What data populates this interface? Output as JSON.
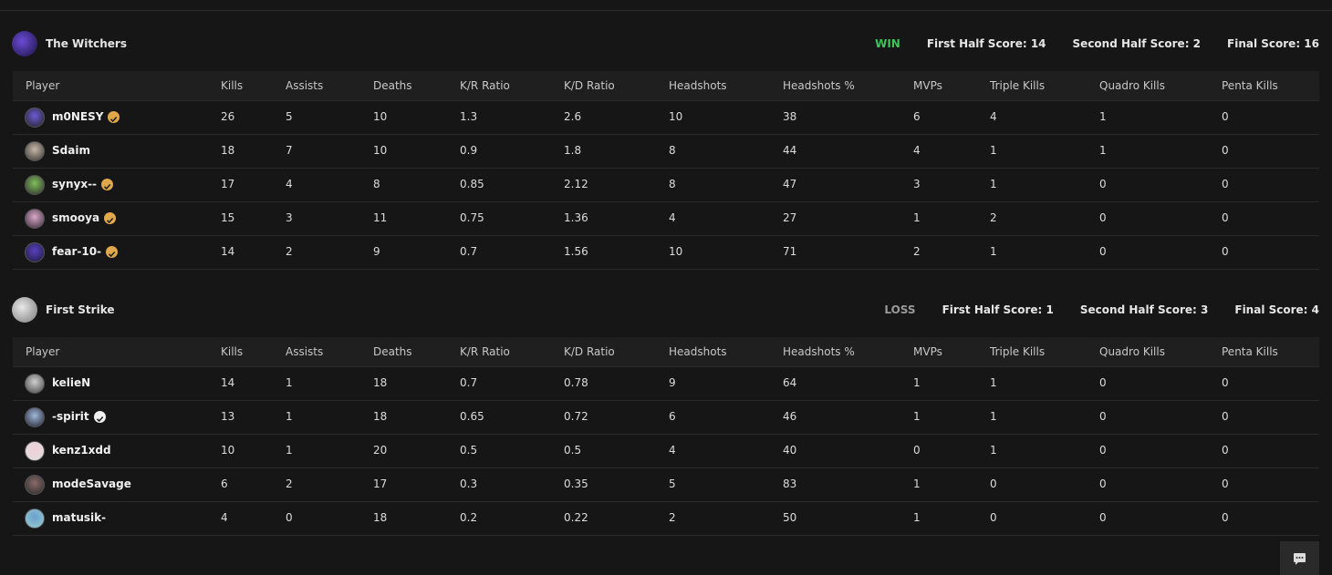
{
  "columns": [
    "Player",
    "Kills",
    "Assists",
    "Deaths",
    "K/R Ratio",
    "K/D Ratio",
    "Headshots",
    "Headshots %",
    "MVPs",
    "Triple Kills",
    "Quadro Kills",
    "Penta Kills"
  ],
  "teams": [
    {
      "name": "The Witchers",
      "result": "WIN",
      "result_color": "#3fc45a",
      "scores": [
        "First Half Score: 14",
        "Second Half Score: 2",
        "Final Score: 16"
      ],
      "rows": [
        {
          "player": "m0NESY",
          "badge": "gold",
          "stats": [
            26,
            5,
            10,
            1.3,
            2.6,
            10,
            38,
            6,
            4,
            1,
            0
          ]
        },
        {
          "player": "Sdaim",
          "stats": [
            18,
            7,
            10,
            0.9,
            1.8,
            8,
            44,
            4,
            1,
            1,
            0
          ]
        },
        {
          "player": "synyx--",
          "badge": "gold",
          "stats": [
            17,
            4,
            8,
            0.85,
            2.12,
            8,
            47,
            3,
            1,
            0,
            0
          ]
        },
        {
          "player": "smooya",
          "badge": "gold",
          "stats": [
            15,
            3,
            11,
            0.75,
            1.36,
            4,
            27,
            1,
            2,
            0,
            0
          ]
        },
        {
          "player": "fear-10-",
          "badge": "gold",
          "stats": [
            14,
            2,
            9,
            0.7,
            1.56,
            10,
            71,
            2,
            1,
            0,
            0
          ]
        }
      ]
    },
    {
      "name": "First Strike",
      "result": "LOSS",
      "result_color": "#9a9a9a",
      "scores": [
        "First Half Score: 1",
        "Second Half Score: 3",
        "Final Score: 4"
      ],
      "rows": [
        {
          "player": "kelieN",
          "stats": [
            14,
            1,
            18,
            0.7,
            0.78,
            9,
            64,
            1,
            1,
            0,
            0
          ]
        },
        {
          "player": "-spirit",
          "badge": "white",
          "stats": [
            13,
            1,
            18,
            0.65,
            0.72,
            6,
            46,
            1,
            1,
            0,
            0
          ]
        },
        {
          "player": "kenz1xdd",
          "stats": [
            10,
            1,
            20,
            0.5,
            0.5,
            4,
            40,
            0,
            1,
            0,
            0
          ]
        },
        {
          "player": "modeSavage",
          "stats": [
            6,
            2,
            17,
            0.3,
            0.35,
            5,
            83,
            1,
            0,
            0,
            0
          ]
        },
        {
          "player": "matusik-",
          "stats": [
            4,
            0,
            18,
            0.2,
            0.22,
            2,
            50,
            1,
            0,
            0,
            0
          ]
        }
      ]
    }
  ]
}
